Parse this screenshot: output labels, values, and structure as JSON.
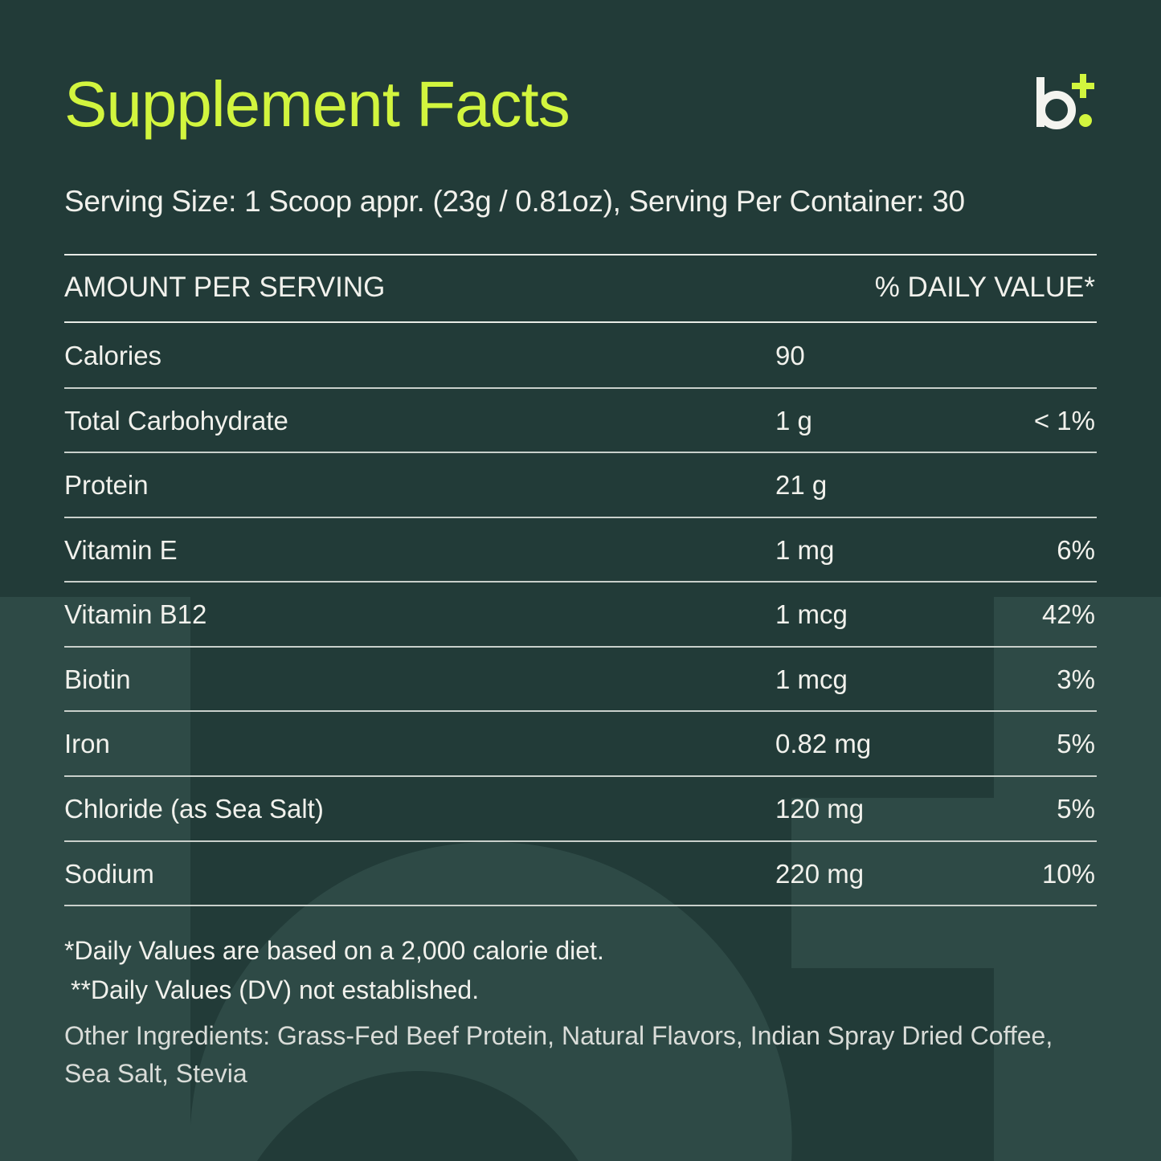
{
  "title": "Supplement Facts",
  "logo": {
    "letter": "b",
    "accent": "+"
  },
  "serving_info": "Serving Size: 1 Scoop appr. (23g / 0.81oz), Serving Per Container: 30",
  "table": {
    "header_left": "AMOUNT PER SERVING",
    "header_right": "% DAILY VALUE*",
    "rows": [
      {
        "name": "Calories",
        "amount": "90",
        "dv": ""
      },
      {
        "name": "Total Carbohydrate",
        "amount": "1 g",
        "dv": "< 1%"
      },
      {
        "name": "Protein",
        "amount": "21 g",
        "dv": ""
      },
      {
        "name": "Vitamin E",
        "amount": "1 mg",
        "dv": "6%"
      },
      {
        "name": "Vitamin B12",
        "amount": "1 mcg",
        "dv": "42%"
      },
      {
        "name": "Biotin",
        "amount": "1 mcg",
        "dv": "3%"
      },
      {
        "name": "Iron",
        "amount": "0.82 mg",
        "dv": "5%"
      },
      {
        "name": "Chloride (as Sea Salt)",
        "amount": "120 mg",
        "dv": "5%"
      },
      {
        "name": "Sodium",
        "amount": "220 mg",
        "dv": "10%"
      }
    ]
  },
  "footnotes": {
    "daily_values": "*Daily Values are based on a 2,000 calorie diet.",
    "not_established": "**Daily Values (DV) not established.",
    "other_ingredients": "Other Ingredients: Grass-Fed Beef Protein, Natural Flavors, Indian Spray Dried Coffee, Sea Salt, Stevia"
  },
  "colors": {
    "background": "#223b38",
    "background_light": "#2e4a46",
    "accent": "#d2f53e",
    "text": "#f1f1ec"
  }
}
